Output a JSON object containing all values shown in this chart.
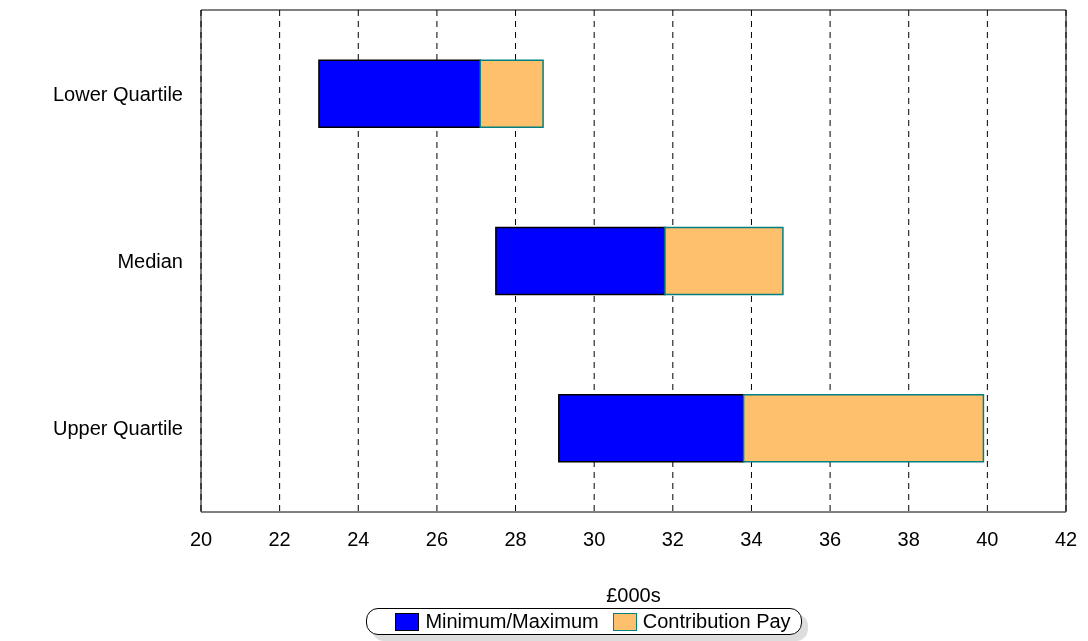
{
  "chart_data": {
    "type": "bar",
    "orientation": "horizontal",
    "xlabel": "£000s",
    "categories": [
      "Lower Quartile",
      "Median",
      "Upper Quartile"
    ],
    "series": [
      {
        "name": "Minimum/Maximum",
        "color": "#0000ff",
        "base": [
          23.0,
          27.5,
          29.1
        ],
        "values": [
          4.1,
          4.3,
          4.7
        ]
      },
      {
        "name": "Contribution Pay",
        "color": "#fec06c",
        "base": [
          27.1,
          31.8,
          33.8
        ],
        "values": [
          1.6,
          3.0,
          6.1
        ]
      }
    ],
    "xlim": [
      20,
      42
    ],
    "xticks": [
      20,
      22,
      24,
      26,
      28,
      30,
      32,
      34,
      36,
      38,
      40,
      42
    ],
    "grid": "x",
    "legend": "bottom"
  }
}
